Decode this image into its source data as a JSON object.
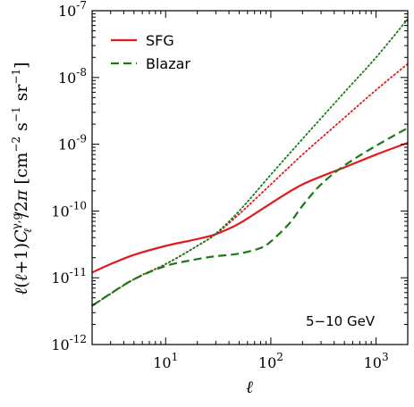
{
  "chart_data": {
    "type": "line",
    "xscale": "log",
    "yscale": "log",
    "xlim": [
      2,
      2000
    ],
    "ylim": [
      1e-12,
      1e-07
    ],
    "xlabel": "ℓ",
    "ylabel": "ℓ(ℓ+1)C_ℓ^{γ,g}/2π [cm⁻² s⁻¹ sr⁻¹]",
    "x_ticks": [
      {
        "value": 10,
        "base": "10",
        "exp": "1"
      },
      {
        "value": 100,
        "base": "10",
        "exp": "2"
      },
      {
        "value": 1000,
        "base": "10",
        "exp": "3"
      }
    ],
    "y_ticks": [
      {
        "value": 1e-12,
        "base": "10",
        "exp": "-12"
      },
      {
        "value": 1e-11,
        "base": "10",
        "exp": "-11"
      },
      {
        "value": 1e-10,
        "base": "10",
        "exp": "-10"
      },
      {
        "value": 1e-09,
        "base": "10",
        "exp": "-9"
      },
      {
        "value": 1e-08,
        "base": "10",
        "exp": "-8"
      },
      {
        "value": 1e-07,
        "base": "10",
        "exp": "-7"
      }
    ],
    "legend_position": "top-left",
    "annotation": "5−10 GeV",
    "series": [
      {
        "name": "SFG",
        "style": "solid",
        "color": "#e31a1c",
        "x": [
          2,
          3,
          5,
          10,
          20,
          30,
          50,
          100,
          200,
          500,
          1000,
          2000
        ],
        "y": [
          1.2e-11,
          1.6e-11,
          2.2e-11,
          3e-11,
          3.8e-11,
          4.5e-11,
          6.5e-11,
          1.3e-10,
          2.5e-10,
          4.5e-10,
          7e-10,
          1.05e-09
        ]
      },
      {
        "name": "Blazar",
        "style": "dashed",
        "color": "#1a7a1a",
        "x": [
          2,
          3,
          5,
          10,
          20,
          30,
          50,
          80,
          100,
          150,
          200,
          300,
          500,
          1000,
          2000
        ],
        "y": [
          3.8e-12,
          5.8e-12,
          9.5e-12,
          1.5e-11,
          1.9e-11,
          2.1e-11,
          2.3e-11,
          2.8e-11,
          3.5e-11,
          6.5e-11,
          1.2e-10,
          2.5e-10,
          4.8e-10,
          9.5e-10,
          1.75e-09
        ]
      },
      {
        "style": "dotted",
        "color": "#e31a1c",
        "x": [
          2,
          5,
          10,
          20,
          30,
          50,
          100,
          200,
          500,
          1000,
          2000
        ],
        "y": [
          3.8e-12,
          9.5e-12,
          1.6e-11,
          3e-11,
          4.5e-11,
          9e-11,
          2.5e-10,
          7e-10,
          2.5e-09,
          6.5e-09,
          1.6e-08
        ]
      },
      {
        "style": "dotted",
        "color": "#1a7a1a",
        "x": [
          2,
          5,
          10,
          20,
          30,
          50,
          100,
          200,
          500,
          1000,
          2000
        ],
        "y": [
          3.8e-12,
          9.5e-12,
          1.6e-11,
          3e-11,
          4.6e-11,
          1e-10,
          3.5e-10,
          1.2e-09,
          6e-09,
          2e-08,
          7.5e-08
        ]
      }
    ]
  }
}
